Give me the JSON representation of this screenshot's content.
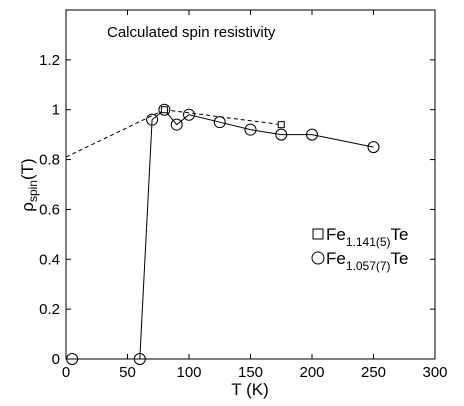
{
  "chart_data": {
    "type": "line",
    "title": "Calculated spin resistivity",
    "xlabel": "T (K)",
    "ylabel": {
      "main": "ρ",
      "sub": "spin",
      "tail": "(T)"
    },
    "xlim": [
      0,
      300
    ],
    "ylim": [
      0,
      1.4
    ],
    "xticks": [
      0,
      50,
      100,
      150,
      200,
      250,
      300
    ],
    "yticks": [
      0,
      0.2,
      0.4,
      0.6,
      0.8,
      1,
      1.2
    ],
    "ytick_labels": [
      "0",
      "0.2",
      "0.4",
      "0.6",
      "0.8",
      "1",
      "1.2"
    ],
    "grid": false,
    "legend_position": "right-middle",
    "series": [
      {
        "name": "Fe1.141(5)Te",
        "legend": {
          "main": "Fe",
          "sub": "1.141(5)",
          "tail": "Te"
        },
        "marker": "square",
        "line": "dashed",
        "color": "#000000",
        "x": [
          80,
          175
        ],
        "y": [
          1.0,
          0.94
        ],
        "extrapolation": {
          "x": [
            0,
            80
          ],
          "y": [
            0.81,
            1.0
          ]
        }
      },
      {
        "name": "Fe1.057(7)Te",
        "legend": {
          "main": "Fe",
          "sub": "1.057(7)",
          "tail": "Te"
        },
        "marker": "circle",
        "line": "solid",
        "color": "#000000",
        "x": [
          5,
          60,
          70,
          80,
          90,
          100,
          125,
          150,
          175,
          200,
          250
        ],
        "y": [
          0,
          0,
          0.96,
          1.0,
          0.94,
          0.98,
          0.95,
          0.92,
          0.9,
          0.9,
          0.85
        ],
        "connected_from_index": 1
      }
    ]
  }
}
